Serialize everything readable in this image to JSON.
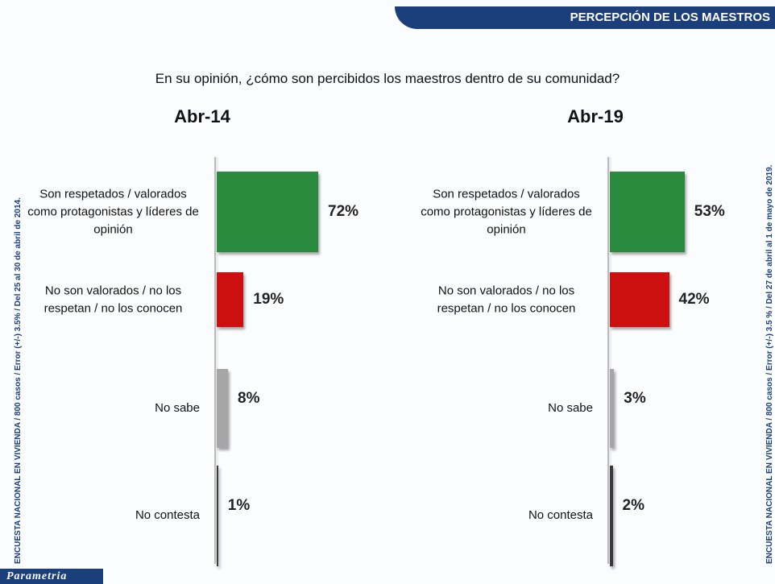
{
  "header": "PERCEPCIÓN DE LOS MAESTROS",
  "question": "En su opinión, ¿cómo son percibidos los maestros dentro de su comunidad?",
  "side_note_left": "ENCUESTA NACIONAL EN VIVIENDA / 800 casos / Error (+/-) 3.5% / Del 25 al 30 de abril de 2014.",
  "side_note_right": "ENCUESTA NACIONAL EN VIVIENDA / 800 casos / Error (+/-) 3.5 % / Del 27 de abril al 1 de mayo de 2019.",
  "logo": "Parametria",
  "chart_data": [
    {
      "type": "bar",
      "title": "Abr-14",
      "categories": [
        "Son respetados / valorados como protagonistas y líderes de opinión",
        "No son valorados / no los respetan / no los conocen",
        "No sabe",
        "No contesta"
      ],
      "values": [
        72,
        19,
        8,
        1
      ],
      "value_labels": [
        "72%",
        "19%",
        "8%",
        "1%"
      ],
      "colors": [
        "#2a8a3e",
        "#cc1010",
        "#a6a6a6",
        "#3a3a3a"
      ]
    },
    {
      "type": "bar",
      "title": "Abr-19",
      "categories": [
        "Son respetados / valorados como protagonistas y líderes de opinión",
        "No son valorados / no los respetan / no los conocen",
        "No sabe",
        "No contesta"
      ],
      "values": [
        53,
        42,
        3,
        2
      ],
      "value_labels": [
        "53%",
        "42%",
        "3%",
        "2%"
      ],
      "colors": [
        "#2a8a3e",
        "#cc1010",
        "#a6a6a6",
        "#3a3a3a"
      ]
    }
  ]
}
